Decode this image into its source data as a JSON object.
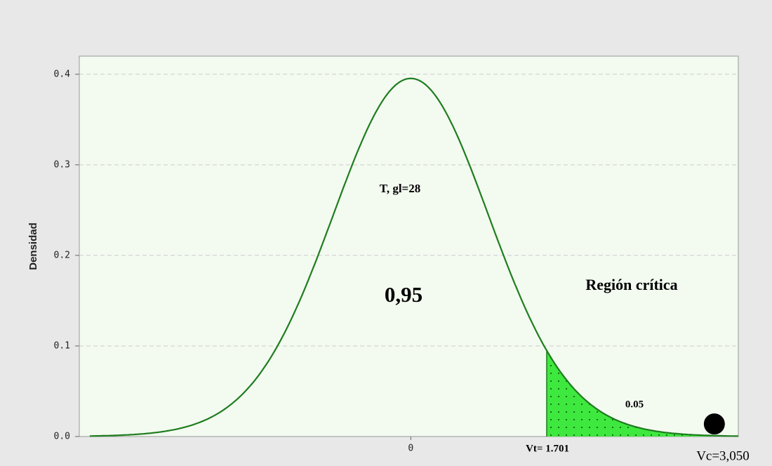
{
  "chart_data": {
    "type": "density",
    "y_label": "Densidad",
    "df": 28,
    "critical": 1.701,
    "xlim": [
      -4.15,
      4.1
    ],
    "ylim": [
      0,
      0.42
    ],
    "xticks": [
      0
    ],
    "yticks": [
      {
        "value": 0,
        "label": "0.0"
      },
      0.1,
      0.2,
      0.3,
      0.4
    ],
    "grid": true,
    "color": "#1e7d1e",
    "fill_color": "#3ee83e",
    "point": {
      "x": 3.8,
      "y": 0.01
    },
    "annotations": {
      "distribution": "T, gl=28",
      "center_area": "0,95",
      "region": "Región crítica",
      "tail_area": "0.05",
      "vt": "Vt= 1.701",
      "vc": "Vc=3,050"
    }
  }
}
